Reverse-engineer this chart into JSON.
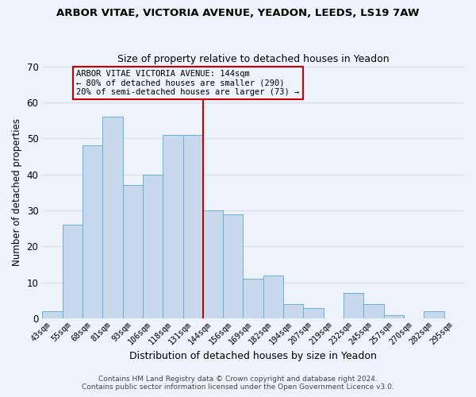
{
  "title": "ARBOR VITAE, VICTORIA AVENUE, YEADON, LEEDS, LS19 7AW",
  "subtitle": "Size of property relative to detached houses in Yeadon",
  "xlabel": "Distribution of detached houses by size in Yeadon",
  "ylabel": "Number of detached properties",
  "footer_lines": [
    "Contains HM Land Registry data © Crown copyright and database right 2024.",
    "Contains public sector information licensed under the Open Government Licence v3.0."
  ],
  "bin_labels": [
    "43sqm",
    "55sqm",
    "68sqm",
    "81sqm",
    "93sqm",
    "106sqm",
    "118sqm",
    "131sqm",
    "144sqm",
    "156sqm",
    "169sqm",
    "182sqm",
    "194sqm",
    "207sqm",
    "219sqm",
    "232sqm",
    "245sqm",
    "257sqm",
    "270sqm",
    "282sqm",
    "295sqm"
  ],
  "bar_heights": [
    2,
    26,
    48,
    56,
    37,
    40,
    51,
    51,
    30,
    29,
    11,
    12,
    4,
    3,
    0,
    7,
    4,
    1,
    0,
    2,
    0
  ],
  "bar_color": "#c8d9ee",
  "bar_edge_color": "#6aaed6",
  "ylim": [
    0,
    70
  ],
  "yticks": [
    0,
    10,
    20,
    30,
    40,
    50,
    60,
    70
  ],
  "property_line_index": 8,
  "property_line_color": "#cc0000",
  "annotation_title": "ARBOR VITAE VICTORIA AVENUE: 144sqm",
  "annotation_line1": "← 80% of detached houses are smaller (290)",
  "annotation_line2": "20% of semi-detached houses are larger (73) →",
  "annotation_box_color": "#cc0000",
  "background_color": "#eef2fa",
  "grid_color": "#d8e0ee"
}
